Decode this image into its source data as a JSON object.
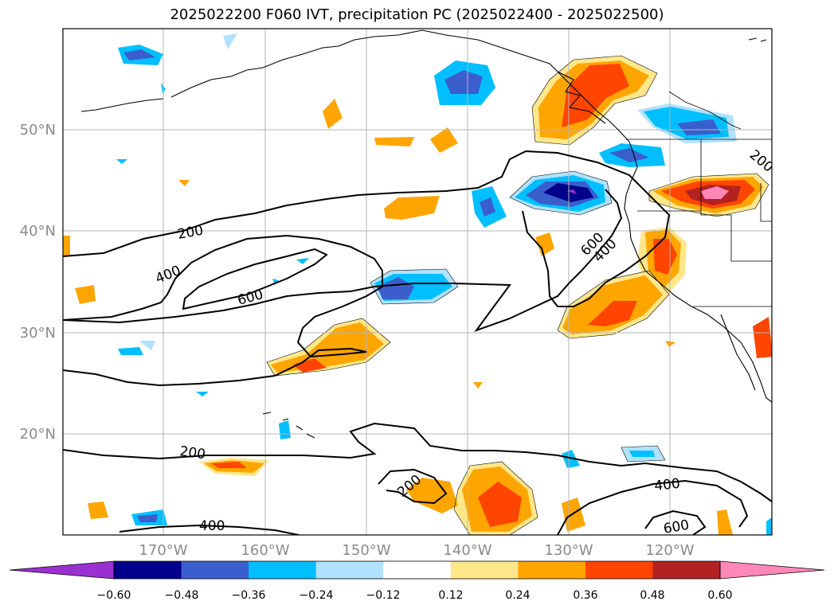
{
  "title": "2025022200 F060 IVT, precipitation PC (2025022400 - 2025022500)",
  "map": {
    "lon_range": [
      -180,
      -110
    ],
    "lat_range": [
      10,
      60
    ],
    "lat_labels": [
      "50°N",
      "40°N",
      "30°N",
      "20°N"
    ],
    "lon_labels": [
      "170°W",
      "160°W",
      "150°W",
      "140°W",
      "130°W",
      "120°W"
    ],
    "gridlines": true
  },
  "ivt_contour_labels": [
    "200",
    "400",
    "600",
    "600",
    "400",
    "200",
    "200",
    "400",
    "200",
    "400",
    "600"
  ],
  "colorbar": {
    "ticks": [
      "−0.60",
      "−0.48",
      "−0.36",
      "−0.24",
      "−0.12",
      "0.12",
      "0.24",
      "0.36",
      "0.48",
      "0.60"
    ],
    "colors": [
      "#9b30d0",
      "#00008b",
      "#3a5fcd",
      "#00bfff",
      "#b0e2ff",
      "#ffffff",
      "#ffe78a",
      "#ffa500",
      "#ff4500",
      "#b22222",
      "#ff88b8"
    ]
  }
}
